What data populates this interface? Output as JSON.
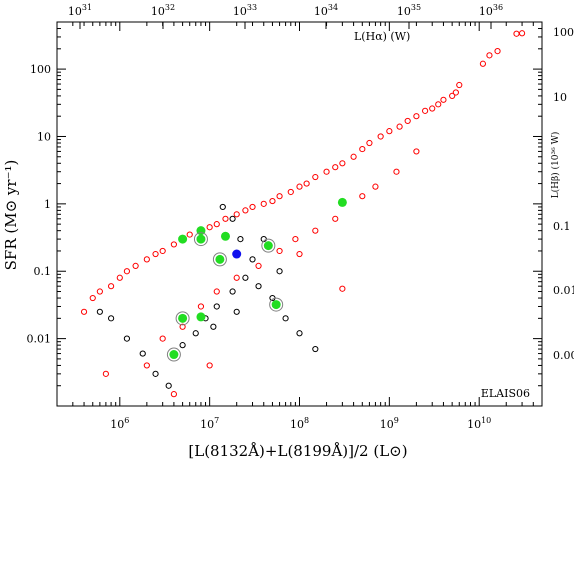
{
  "chart_data": {
    "type": "scatter",
    "panel_label": "ELAIS06",
    "xlabel": "[L(8132Å)+L(8199Å)]/2 (L⊙)",
    "ylabel": "SFR (M⊙ yr⁻¹)",
    "top_xlabel": "L(Hα) (W)",
    "right_ylabel": "L(Hβ) (10³⁶ W)",
    "xscale": "log",
    "yscale": "log",
    "xlim": [
      200000,
      50000000000
    ],
    "ylim": [
      0.001,
      500
    ],
    "x_ticks": [
      {
        "value": 1000000,
        "mantissa": "10",
        "exp": "6"
      },
      {
        "value": 10000000,
        "mantissa": "10",
        "exp": "7"
      },
      {
        "value": 100000000,
        "mantissa": "10",
        "exp": "8"
      },
      {
        "value": 1000000000,
        "mantissa": "10",
        "exp": "9"
      },
      {
        "value": 10000000000,
        "mantissa": "10",
        "exp": "10"
      }
    ],
    "y_ticks": [
      {
        "value": 0.01,
        "label": "0.01"
      },
      {
        "value": 0.1,
        "label": "0.1"
      },
      {
        "value": 1,
        "label": "1"
      },
      {
        "value": 10,
        "label": "10"
      },
      {
        "value": 100,
        "label": "100"
      }
    ],
    "top_ticks": [
      {
        "mantissa": "10",
        "exp": "31"
      },
      {
        "mantissa": "10",
        "exp": "32"
      },
      {
        "mantissa": "10",
        "exp": "33"
      },
      {
        "mantissa": "10",
        "exp": "34"
      },
      {
        "mantissa": "10",
        "exp": "35"
      },
      {
        "mantissa": "10",
        "exp": "36"
      }
    ],
    "right_ticks": [
      {
        "label": "100"
      },
      {
        "label": "10"
      },
      {
        "label": "0.1"
      },
      {
        "label": "0.01"
      },
      {
        "label": "0.00"
      }
    ],
    "series": [
      {
        "marker": "open-circle",
        "color": "#ff0000",
        "points": [
          [
            30000000000.0,
            340
          ],
          [
            26000000000.0,
            335
          ],
          [
            16000000000.0,
            185
          ],
          [
            13000000000.0,
            160
          ],
          [
            11000000000.0,
            120
          ],
          [
            6000000000.0,
            58
          ],
          [
            5500000000.0,
            45
          ],
          [
            5000000000.0,
            40
          ],
          [
            4000000000.0,
            35
          ],
          [
            3500000000.0,
            30
          ],
          [
            3000000000.0,
            26
          ],
          [
            2500000000.0,
            24
          ],
          [
            2000000000.0,
            20
          ],
          [
            1600000000.0,
            17
          ],
          [
            1300000000.0,
            14
          ],
          [
            1000000000.0,
            12
          ],
          [
            800000000.0,
            10
          ],
          [
            600000000.0,
            8
          ],
          [
            500000000.0,
            6.5
          ],
          [
            400000000.0,
            5
          ],
          [
            300000000.0,
            4
          ],
          [
            250000000.0,
            3.5
          ],
          [
            200000000.0,
            3
          ],
          [
            150000000.0,
            2.5
          ],
          [
            120000000.0,
            2
          ],
          [
            100000000.0,
            1.8
          ],
          [
            80000000.0,
            1.5
          ],
          [
            60000000.0,
            1.3
          ],
          [
            50000000.0,
            1.1
          ],
          [
            40000000.0,
            1.0
          ],
          [
            30000000.0,
            0.9
          ],
          [
            25000000.0,
            0.8
          ],
          [
            20000000.0,
            0.7
          ],
          [
            15000000.0,
            0.6
          ],
          [
            12000000.0,
            0.5
          ],
          [
            10000000.0,
            0.45
          ],
          [
            8000000.0,
            0.4
          ],
          [
            6000000.0,
            0.35
          ],
          [
            5000000.0,
            0.3
          ],
          [
            4000000.0,
            0.25
          ],
          [
            3000000.0,
            0.2
          ],
          [
            2500000.0,
            0.18
          ],
          [
            2000000.0,
            0.15
          ],
          [
            1500000.0,
            0.12
          ],
          [
            1200000.0,
            0.1
          ],
          [
            1000000.0,
            0.08
          ],
          [
            800000.0,
            0.06
          ],
          [
            600000.0,
            0.05
          ],
          [
            500000.0,
            0.04
          ],
          [
            400000.0,
            0.025
          ],
          [
            300000000.0,
            0.055
          ],
          [
            10000000.0,
            0.004
          ],
          [
            4000000.0,
            0.0015
          ],
          [
            2000000.0,
            0.004
          ],
          [
            700000.0,
            0.003
          ],
          [
            250000000.0,
            0.6
          ],
          [
            150000000.0,
            0.4
          ],
          [
            90000000.0,
            0.3
          ],
          [
            60000000.0,
            0.2
          ],
          [
            35000000.0,
            0.12
          ],
          [
            20000000.0,
            0.08
          ],
          [
            12000000.0,
            0.05
          ],
          [
            8000000.0,
            0.03
          ],
          [
            5000000.0,
            0.015
          ],
          [
            3000000.0,
            0.01
          ],
          [
            100000000.0,
            0.18
          ],
          [
            500000000.0,
            1.3
          ],
          [
            700000000.0,
            1.8
          ],
          [
            1200000000.0,
            3
          ],
          [
            2000000000.0,
            6
          ]
        ]
      },
      {
        "marker": "open-circle",
        "color": "#000000",
        "points": [
          [
            600000.0,
            0.025
          ],
          [
            800000.0,
            0.02
          ],
          [
            1200000.0,
            0.01
          ],
          [
            1800000.0,
            0.006
          ],
          [
            2500000.0,
            0.003
          ],
          [
            3500000.0,
            0.002
          ],
          [
            5000000.0,
            0.008
          ],
          [
            7000000.0,
            0.012
          ],
          [
            9000000.0,
            0.02
          ],
          [
            12000000.0,
            0.03
          ],
          [
            18000000.0,
            0.05
          ],
          [
            25000000.0,
            0.08
          ],
          [
            35000000.0,
            0.06
          ],
          [
            50000000.0,
            0.04
          ],
          [
            70000000.0,
            0.02
          ],
          [
            100000000.0,
            0.012
          ],
          [
            14000000.0,
            0.9
          ],
          [
            18000000.0,
            0.6
          ],
          [
            22000000.0,
            0.3
          ],
          [
            30000000.0,
            0.15
          ],
          [
            150000000.0,
            0.007
          ],
          [
            40000000.0,
            0.3
          ],
          [
            60000000.0,
            0.1
          ],
          [
            20000000.0,
            0.025
          ],
          [
            11000000.0,
            0.015
          ]
        ]
      }
    ],
    "highlight_points": [
      {
        "x": 5000000.0,
        "y": 0.3,
        "color": "#22dd22",
        "ring": false
      },
      {
        "x": 8000000.0,
        "y": 0.4,
        "color": "#22dd22",
        "ring": false
      },
      {
        "x": 8000000.0,
        "y": 0.3,
        "color": "#22dd22",
        "ring": true
      },
      {
        "x": 15000000.0,
        "y": 0.33,
        "color": "#22dd22",
        "ring": false
      },
      {
        "x": 13000000.0,
        "y": 0.15,
        "color": "#22dd22",
        "ring": true
      },
      {
        "x": 45000000.0,
        "y": 0.24,
        "color": "#22dd22",
        "ring": true
      },
      {
        "x": 20000000.0,
        "y": 0.18,
        "color": "#1010ee",
        "ring": false
      },
      {
        "x": 300000000.0,
        "y": 1.05,
        "color": "#22dd22",
        "ring": false
      },
      {
        "x": 5000000.0,
        "y": 0.02,
        "color": "#22dd22",
        "ring": true
      },
      {
        "x": 8000000.0,
        "y": 0.021,
        "color": "#22dd22",
        "ring": false
      },
      {
        "x": 55000000.0,
        "y": 0.032,
        "color": "#22dd22",
        "ring": true
      },
      {
        "x": 4000000.0,
        "y": 0.0058,
        "color": "#22dd22",
        "ring": true
      }
    ]
  }
}
